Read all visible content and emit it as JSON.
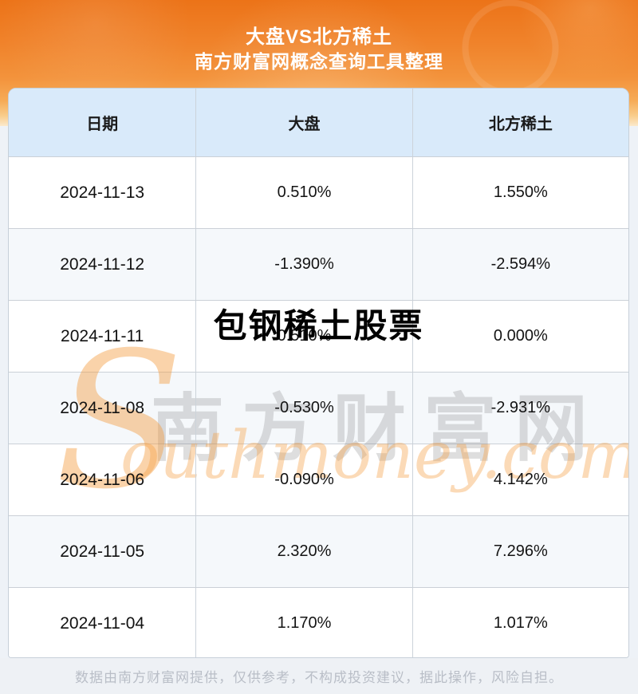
{
  "header": {
    "title": "大盘VS北方稀土",
    "subtitle": "南方财富网概念查询工具整理"
  },
  "table": {
    "columns": [
      "日期",
      "大盘",
      "北方稀土"
    ],
    "rows": [
      {
        "date": "2024-11-13",
        "market": "0.510%",
        "stock": "1.550%"
      },
      {
        "date": "2024-11-12",
        "market": "-1.390%",
        "stock": "-2.594%"
      },
      {
        "date": "2024-11-11",
        "market": "0.510%",
        "stock": "0.000%"
      },
      {
        "date": "2024-11-08",
        "market": "-0.530%",
        "stock": "-2.931%"
      },
      {
        "date": "2024-11-06",
        "market": "-0.090%",
        "stock": "4.142%"
      },
      {
        "date": "2024-11-05",
        "market": "2.320%",
        "stock": "7.296%"
      },
      {
        "date": "2024-11-04",
        "market": "1.170%",
        "stock": "1.017%"
      }
    ]
  },
  "watermarks": {
    "overlay_title": "包钢稀土股票",
    "brand_cn": "南方财富网",
    "brand_s": "S",
    "brand_en": "outhmoney.com"
  },
  "footer": {
    "disclaimer": "数据由南方财富网提供，仅供参考，不构成投资建议，据此操作，风险自担。"
  },
  "colors": {
    "hero_orange_top": "#ec7318",
    "hero_orange_mid": "#f3933c",
    "hero_orange_fade": "#fbe9cb",
    "table_header_bg": "#d9eafa",
    "row_alt_bg": "#f5f8fb",
    "page_bg": "#eef2f7",
    "separator": "#cbd0d7",
    "footer_text": "#b9bec7",
    "watermark_orange": "#f49e42",
    "watermark_gray": "#696969"
  },
  "chart_data": {
    "type": "table",
    "title": "大盘VS北方稀土",
    "subtitle": "南方财富网概念查询工具整理",
    "columns": [
      "日期",
      "大盘",
      "北方稀土"
    ],
    "rows": [
      [
        "2024-11-13",
        "0.510%",
        "1.550%"
      ],
      [
        "2024-11-12",
        "-1.390%",
        "-2.594%"
      ],
      [
        "2024-11-11",
        "0.510%",
        "0.000%"
      ],
      [
        "2024-11-08",
        "-0.530%",
        "-2.931%"
      ],
      [
        "2024-11-06",
        "-0.090%",
        "4.142%"
      ],
      [
        "2024-11-05",
        "2.320%",
        "7.296%"
      ],
      [
        "2024-11-04",
        "1.170%",
        "1.017%"
      ]
    ]
  }
}
